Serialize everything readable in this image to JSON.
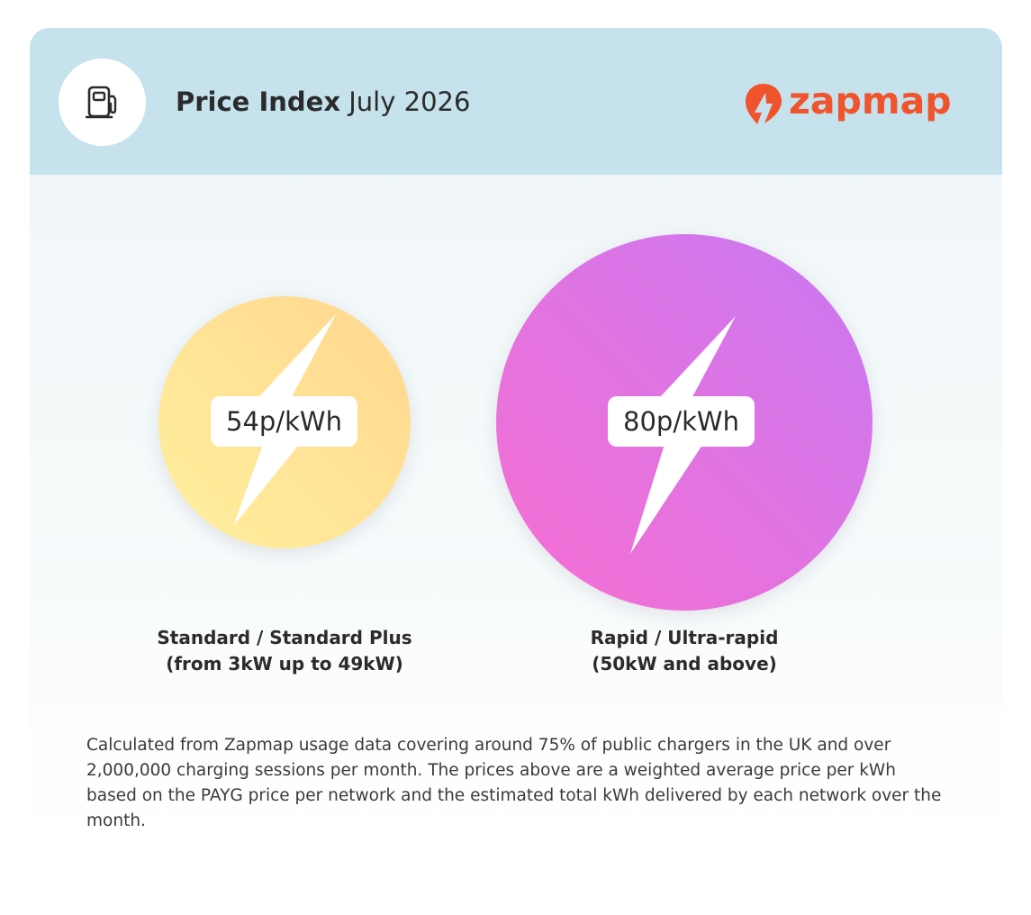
{
  "header": {
    "title_strong": "Price Index",
    "title_rest": "July 2026",
    "logo_text": "zapmap",
    "icon": "fuel-pump-icon",
    "background_color": "#c6e2ec",
    "brand_color": "#f0542d"
  },
  "bubbles": [
    {
      "price": "54p/kWh",
      "label_line1": "Standard / Standard Plus",
      "label_line2": "(from 3kW up to 49kW)",
      "icon": "lightning-bolt-icon",
      "colors": [
        "#fff09e",
        "#ffd68f"
      ]
    },
    {
      "price": "80p/kWh",
      "label_line1": "Rapid / Ultra-rapid",
      "label_line2": "(50kW and above)",
      "icon": "lightning-bolt-icon",
      "colors": [
        "#f76fd2",
        "#c978f2"
      ]
    }
  ],
  "footnote": "Calculated from Zapmap usage data covering around 75% of public chargers in the UK and over 2,000,000 charging sessions per month. The prices above are a weighted average price per kWh based on the PAYG price per network and the estimated total kWh delivered by each network over the month."
}
